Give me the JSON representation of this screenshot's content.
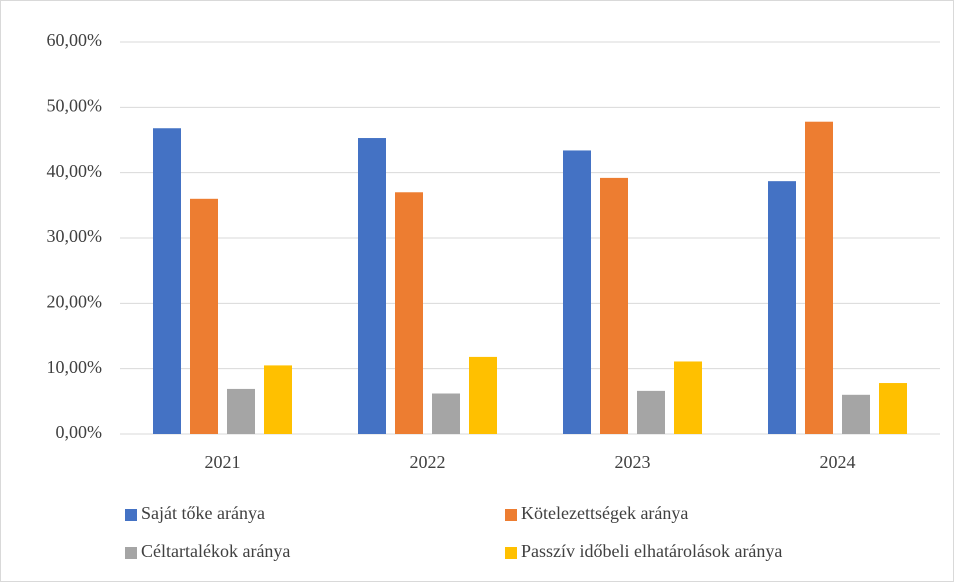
{
  "chart_data": {
    "type": "bar",
    "categories": [
      "2021",
      "2022",
      "2023",
      "2024"
    ],
    "series": [
      {
        "name": "Saját tőke aránya",
        "color": "#4472c4",
        "values": [
          46.8,
          45.3,
          43.4,
          38.7
        ]
      },
      {
        "name": "Kötelezettségek aránya",
        "color": "#ed7d31",
        "values": [
          36.0,
          37.0,
          39.2,
          47.8
        ]
      },
      {
        "name": "Céltartalékok aránya",
        "color": "#a5a5a5",
        "values": [
          6.9,
          6.2,
          6.6,
          6.0
        ]
      },
      {
        "name": "Passzív időbeli elhatárolások aránya",
        "color": "#ffc000",
        "values": [
          10.5,
          11.8,
          11.1,
          7.8
        ]
      }
    ],
    "ylim": [
      0,
      60
    ],
    "yticks": [
      {
        "value": 0,
        "label": "0,00%"
      },
      {
        "value": 10,
        "label": "10,00%"
      },
      {
        "value": 20,
        "label": "20,00%"
      },
      {
        "value": 30,
        "label": "30,00%"
      },
      {
        "value": 40,
        "label": "40,00%"
      },
      {
        "value": 50,
        "label": "50,00%"
      },
      {
        "value": 60,
        "label": "60,00%"
      }
    ],
    "grid": true,
    "legend": "bottom"
  }
}
